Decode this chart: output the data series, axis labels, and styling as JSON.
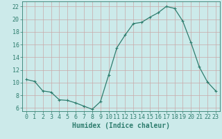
{
  "x": [
    0,
    1,
    2,
    3,
    4,
    5,
    6,
    7,
    8,
    9,
    10,
    11,
    12,
    13,
    14,
    15,
    16,
    17,
    18,
    19,
    20,
    21,
    22,
    23
  ],
  "y": [
    10.5,
    10.2,
    8.7,
    8.5,
    7.3,
    7.2,
    6.8,
    6.3,
    5.8,
    7.0,
    11.2,
    15.5,
    17.5,
    19.3,
    19.5,
    20.3,
    21.0,
    22.0,
    21.7,
    19.7,
    16.3,
    12.5,
    10.1,
    8.7
  ],
  "line_color": "#2e7d6e",
  "marker": "+",
  "marker_size": 3,
  "marker_lw": 0.8,
  "bg_color": "#cceaea",
  "grid_color_major": "#c8a8a8",
  "grid_color_minor": "#c8a8a8",
  "xlabel": "Humidex (Indice chaleur)",
  "xlim": [
    -0.5,
    23.5
  ],
  "ylim": [
    5.5,
    22.8
  ],
  "yticks": [
    6,
    8,
    10,
    12,
    14,
    16,
    18,
    20,
    22
  ],
  "xticks": [
    0,
    1,
    2,
    3,
    4,
    5,
    6,
    7,
    8,
    9,
    10,
    11,
    12,
    13,
    14,
    15,
    16,
    17,
    18,
    19,
    20,
    21,
    22,
    23
  ],
  "tick_color": "#2e7d6e",
  "xlabel_fontsize": 7,
  "tick_fontsize": 6,
  "line_width": 0.9
}
